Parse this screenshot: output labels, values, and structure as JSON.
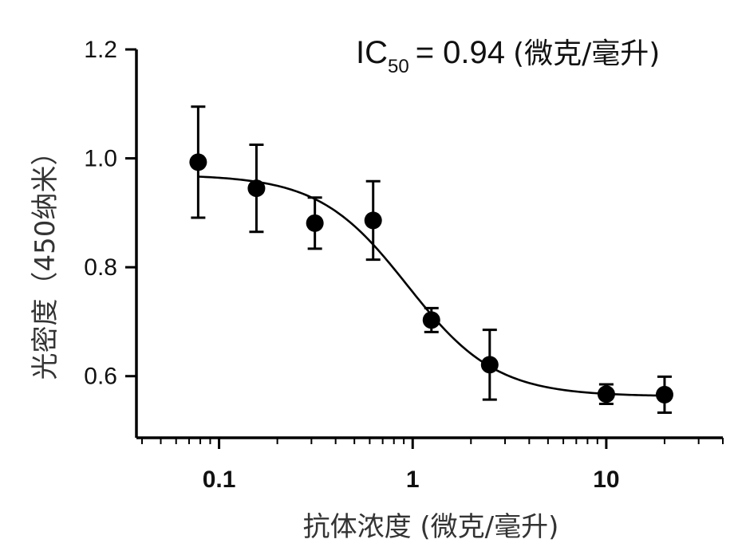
{
  "chart_data": {
    "type": "scatter",
    "title": "",
    "xlabel": "抗体浓度 (微克/毫升)",
    "ylabel": "光密度（450纳米）",
    "x_scale": "log",
    "xlim": [
      0.04,
      40
    ],
    "ylim": [
      0.5,
      1.2
    ],
    "x_ticks": [
      0.1,
      1,
      10
    ],
    "x_tick_labels": [
      "0.1",
      "1",
      "10"
    ],
    "y_ticks": [
      0.6,
      0.8,
      1.0,
      1.2
    ],
    "y_tick_labels": [
      "0.6",
      "0.8",
      "1.0",
      "1.2"
    ],
    "grid": false,
    "points": [
      {
        "x": 0.078,
        "y": 0.993,
        "err": 0.102
      },
      {
        "x": 0.156,
        "y": 0.945,
        "err": 0.08
      },
      {
        "x": 0.3125,
        "y": 0.881,
        "err": 0.047
      },
      {
        "x": 0.625,
        "y": 0.886,
        "err": 0.072
      },
      {
        "x": 1.25,
        "y": 0.703,
        "err": 0.022
      },
      {
        "x": 2.5,
        "y": 0.621,
        "err": 0.064
      },
      {
        "x": 10,
        "y": 0.567,
        "err": 0.018
      },
      {
        "x": 20,
        "y": 0.566,
        "err": 0.033
      }
    ],
    "fit": {
      "type": "four-parameter logistic",
      "top": 0.97,
      "bottom": 0.563,
      "ic50": 0.94,
      "hill": 1.9
    },
    "annotation": {
      "label": "IC",
      "subscript": "50",
      "value_text": "= 0.94",
      "unit": "(微克/毫升)"
    }
  }
}
